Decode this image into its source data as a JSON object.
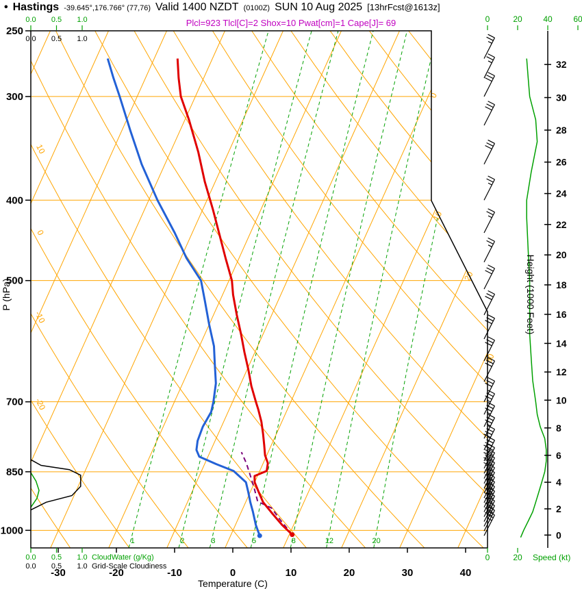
{
  "header": {
    "bullet": "•",
    "station": "Hastings",
    "coords": "-39.645°,176.766° (77,76)",
    "valid": "Valid 1400 NZDT",
    "valid_zulu": "(0100Z)",
    "valid_date": "SUN 10 Aug 2025",
    "forecast_tag": "[13hrFcst@1613z]",
    "params_line": "Plcl=923 Tlcl[C]=2 Shox=10 Pwat[cm]=1 Cape[J]= 69"
  },
  "axes": {
    "pressure_label": "P (hPa)",
    "pressure_ticks": [
      250,
      300,
      400,
      500,
      700,
      850,
      1000
    ],
    "temperature_label": "Temperature (C)",
    "temperature_ticks": [
      -30,
      -20,
      -10,
      0,
      10,
      20,
      30,
      40
    ],
    "height_label": "Height (1000 Feet)",
    "height_ticks": [
      0,
      2,
      4,
      6,
      8,
      10,
      12,
      14,
      16,
      18,
      20,
      22,
      24,
      26,
      28,
      30,
      32
    ],
    "speed_label": "Speed (kt)",
    "speed_ticks": [
      0,
      20,
      40,
      60
    ],
    "speed_ticks_bottom": [
      0,
      20
    ],
    "cloud_scale_ticks": [
      "0.0",
      "0.5",
      "1.0"
    ],
    "cloudwater_label": "CloudWater (g/Kg)",
    "cloudiness_label": "Grid-Scale Cloudiness",
    "isotherm_edge_labels": [
      0,
      10,
      20,
      30
    ],
    "adiabat_edge_labels": [
      10,
      0,
      -10,
      -20
    ],
    "mixing_ratio_labels": [
      1,
      2,
      3,
      5,
      8,
      12,
      20
    ]
  },
  "chart_data": {
    "type": "skewt_log_p_sounding",
    "pressure_range_hpa": [
      250,
      1050
    ],
    "temperature_range_c": [
      -30,
      40
    ],
    "isobar_lines_hpa": [
      300,
      400,
      500,
      700,
      850,
      1000
    ],
    "colors": {
      "grid": "#ffa500",
      "green": "#00a000",
      "temperature": "#e00000",
      "dewpoint": "#2361d6",
      "parcel": "#7a007a",
      "magenta": "#c000c0"
    },
    "temperature_profile_c": [
      [
        1012,
        10.5
      ],
      [
        985,
        8.0
      ],
      [
        955,
        5.5
      ],
      [
        925,
        3.0
      ],
      [
        900,
        1.5
      ],
      [
        875,
        0.0
      ],
      [
        860,
        -0.5
      ],
      [
        848,
        1.2
      ],
      [
        830,
        0.8
      ],
      [
        812,
        -0.3
      ],
      [
        790,
        -1.2
      ],
      [
        765,
        -2.3
      ],
      [
        740,
        -3.5
      ],
      [
        715,
        -5.0
      ],
      [
        700,
        -6.0
      ],
      [
        670,
        -8.0
      ],
      [
        640,
        -9.8
      ],
      [
        610,
        -11.8
      ],
      [
        580,
        -13.8
      ],
      [
        550,
        -16.0
      ],
      [
        520,
        -18.2
      ],
      [
        500,
        -19.5
      ],
      [
        470,
        -22.3
      ],
      [
        440,
        -25.2
      ],
      [
        410,
        -28.3
      ],
      [
        380,
        -31.8
      ],
      [
        350,
        -35.2
      ],
      [
        320,
        -39.3
      ],
      [
        300,
        -42.5
      ],
      [
        285,
        -44.3
      ],
      [
        270,
        -46.0
      ]
    ],
    "dewpoint_profile_c": [
      [
        1015,
        5.0
      ],
      [
        985,
        3.5
      ],
      [
        950,
        2.0
      ],
      [
        925,
        0.8
      ],
      [
        900,
        -0.3
      ],
      [
        875,
        -1.5
      ],
      [
        848,
        -4.5
      ],
      [
        832,
        -8.0
      ],
      [
        815,
        -11.5
      ],
      [
        800,
        -12.5
      ],
      [
        780,
        -13.0
      ],
      [
        750,
        -13.2
      ],
      [
        720,
        -12.9
      ],
      [
        700,
        -13.3
      ],
      [
        665,
        -14.3
      ],
      [
        630,
        -16.0
      ],
      [
        600,
        -17.5
      ],
      [
        565,
        -20.0
      ],
      [
        530,
        -22.5
      ],
      [
        500,
        -24.8
      ],
      [
        470,
        -29.0
      ],
      [
        438,
        -33.0
      ],
      [
        400,
        -38.5
      ],
      [
        362,
        -44.0
      ],
      [
        330,
        -48.5
      ],
      [
        300,
        -53.0
      ],
      [
        285,
        -55.5
      ],
      [
        270,
        -58.0
      ]
    ],
    "parcel_path_c": [
      [
        1012,
        10.5
      ],
      [
        970,
        7.2
      ],
      [
        940,
        4.9
      ],
      [
        923,
        2.0
      ],
      [
        890,
        0.4
      ],
      [
        860,
        -1.2
      ],
      [
        830,
        -2.9
      ],
      [
        805,
        -4.6
      ]
    ],
    "wind_speed_profile_kt": [
      [
        1020,
        22
      ],
      [
        1000,
        24
      ],
      [
        975,
        27
      ],
      [
        950,
        30
      ],
      [
        925,
        32
      ],
      [
        900,
        34
      ],
      [
        875,
        36
      ],
      [
        850,
        38
      ],
      [
        825,
        39
      ],
      [
        800,
        39
      ],
      [
        775,
        38
      ],
      [
        750,
        35
      ],
      [
        725,
        33
      ],
      [
        700,
        32
      ],
      [
        660,
        30
      ],
      [
        620,
        29
      ],
      [
        580,
        28
      ],
      [
        540,
        28
      ],
      [
        500,
        28
      ],
      [
        460,
        27
      ],
      [
        420,
        26
      ],
      [
        400,
        26
      ],
      [
        370,
        29
      ],
      [
        340,
        33
      ],
      [
        320,
        32
      ],
      [
        300,
        28
      ],
      [
        285,
        27
      ],
      [
        270,
        26
      ]
    ],
    "wind_barbs_kt": [
      [
        1015,
        25
      ],
      [
        1002,
        28
      ],
      [
        989,
        30
      ],
      [
        976,
        30
      ],
      [
        963,
        32
      ],
      [
        950,
        33
      ],
      [
        938,
        33
      ],
      [
        926,
        35
      ],
      [
        914,
        35
      ],
      [
        902,
        36
      ],
      [
        890,
        37
      ],
      [
        878,
        37
      ],
      [
        866,
        38
      ],
      [
        854,
        38
      ],
      [
        842,
        38
      ],
      [
        825,
        39
      ],
      [
        800,
        39
      ],
      [
        775,
        37
      ],
      [
        750,
        35
      ],
      [
        725,
        33
      ],
      [
        700,
        32
      ],
      [
        662,
        30
      ],
      [
        625,
        29
      ],
      [
        588,
        28
      ],
      [
        550,
        28
      ],
      [
        512,
        28
      ],
      [
        475,
        27
      ],
      [
        438,
        27
      ],
      [
        400,
        26
      ],
      [
        362,
        28
      ],
      [
        325,
        31
      ],
      [
        300,
        28
      ],
      [
        285,
        27
      ],
      [
        270,
        26
      ]
    ],
    "cloudiness_profile": [
      [
        945,
        0.0
      ],
      [
        925,
        0.3
      ],
      [
        908,
        0.8
      ],
      [
        885,
        0.97
      ],
      [
        858,
        0.97
      ],
      [
        845,
        0.75
      ],
      [
        835,
        0.2
      ],
      [
        822,
        0.0
      ]
    ],
    "cloudwater_profile": [
      [
        938,
        0.0
      ],
      [
        915,
        0.12
      ],
      [
        895,
        0.16
      ],
      [
        872,
        0.1
      ],
      [
        852,
        0.0
      ]
    ]
  }
}
